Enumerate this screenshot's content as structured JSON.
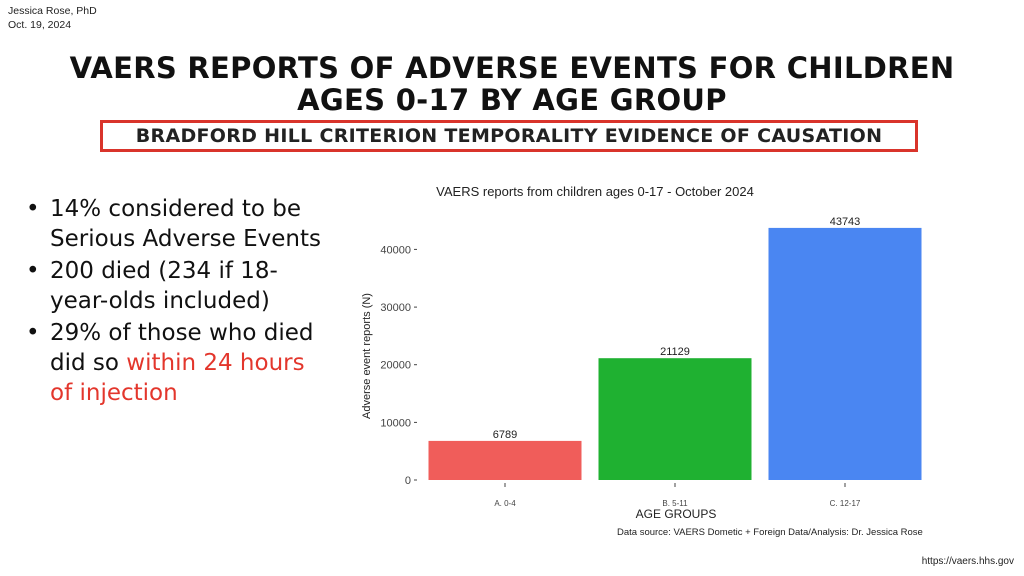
{
  "author": {
    "name": "Jessica Rose, PhD",
    "date": "Oct. 19, 2024"
  },
  "title": {
    "line1": "VAERS REPORTS OF ADVERSE EVENTS FOR CHILDREN",
    "line2": "AGES 0-17 BY AGE GROUP"
  },
  "criterion": "BRADFORD HILL CRITERION TEMPORALITY EVIDENCE OF CAUSATION",
  "bullets": {
    "b1": "14% considered to be Serious Adverse Events",
    "b2": "200 died (234 if 18-year-olds included)",
    "b3_prefix": "29% of those who died did so ",
    "b3_highlight": "within 24 hours of injection"
  },
  "colors": {
    "accent_red": "#e3362c",
    "box_border": "#d9342b"
  },
  "chart_data": {
    "type": "bar",
    "title": "VAERS reports from children ages 0-17 - October 2024",
    "xlabel": "AGE GROUPS",
    "ylabel": "Adverse event reports (N)",
    "categories": [
      "A. 0-4",
      "B. 5-11",
      "C. 12-17"
    ],
    "values": [
      6789,
      21129,
      43743
    ],
    "bar_colors": [
      "#f05d5a",
      "#1fb131",
      "#4a86f2"
    ],
    "ylim": [
      0,
      45800
    ],
    "yticks": [
      0,
      10000,
      20000,
      30000,
      40000
    ],
    "data_labels": [
      "6789",
      "21129",
      "43743"
    ],
    "grid": false,
    "legend": "none"
  },
  "footer": {
    "source": "Data source: VAERS Dometic + Foreign Data/Analysis: Dr. Jessica Rose",
    "url": "https://vaers.hhs.gov"
  }
}
